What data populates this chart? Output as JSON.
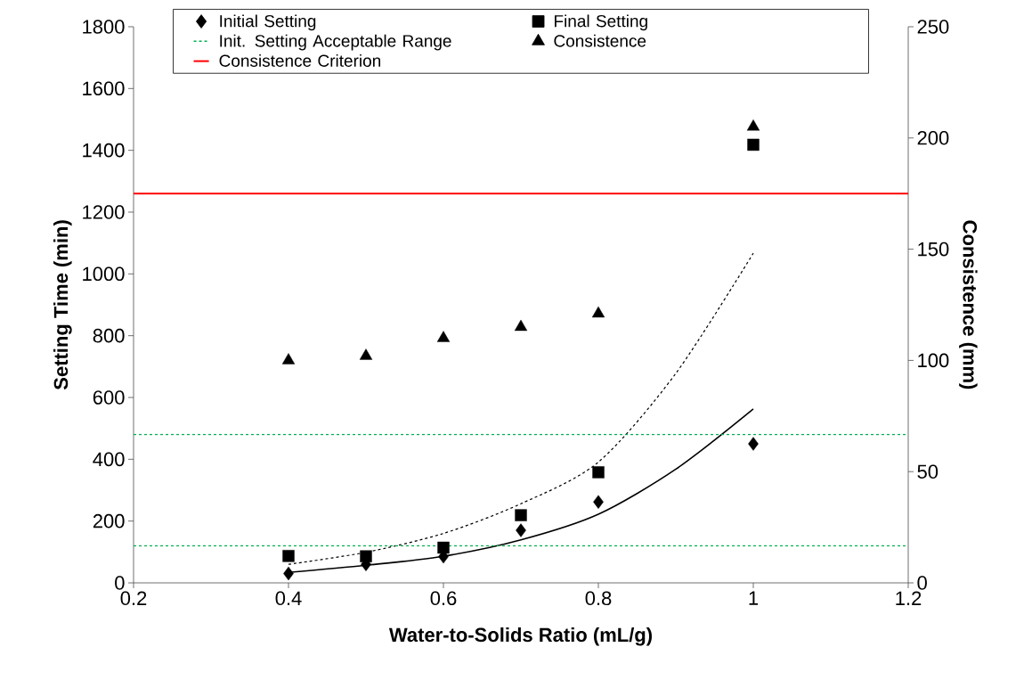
{
  "chart_data": {
    "type": "scatter",
    "xlabel": "Water-to-Solids Ratio (mL/g)",
    "ylabel": "Setting Time (min)",
    "y2label": "Consistence (mm)",
    "xlim": [
      0.2,
      1.2
    ],
    "xticks": [
      0.2,
      0.4,
      0.6,
      0.8,
      1,
      1.2
    ],
    "ylim": [
      0,
      1800
    ],
    "yticks": [
      0,
      200,
      400,
      600,
      800,
      1000,
      1200,
      1400,
      1600,
      1800
    ],
    "y2lim": [
      0,
      250
    ],
    "y2ticks": [
      0,
      50,
      100,
      150,
      200,
      250
    ],
    "x": [
      0.4,
      0.5,
      0.6,
      0.7,
      0.8,
      1.0
    ],
    "legend": "top",
    "series": [
      {
        "name": "Initial Setting",
        "color": "#000000",
        "marker": "diamond",
        "values": [
          30,
          60,
          85,
          170,
          262,
          450
        ]
      },
      {
        "name": "Final Setting",
        "color": "#000000",
        "marker": "square",
        "values": [
          87,
          86,
          114,
          219,
          358,
          1418
        ]
      },
      {
        "name": "Consistence",
        "color": "#000000",
        "marker": "triangle",
        "axis": "y2",
        "values": [
          100,
          102,
          110,
          115,
          121,
          205
        ]
      },
      {
        "type": "line",
        "color": "#000000",
        "line_style": "solid",
        "x": [
          0.4,
          0.5,
          0.6,
          0.7,
          0.8,
          0.9,
          1.0
        ],
        "values": [
          34,
          57,
          86,
          139,
          222,
          368,
          563
        ]
      },
      {
        "type": "line",
        "color": "#000000",
        "line_style": "dashed",
        "x": [
          0.4,
          0.5,
          0.6,
          0.7,
          0.8,
          0.9,
          1.0
        ],
        "values": [
          60,
          99,
          160,
          256,
          391,
          678,
          1067
        ]
      }
    ],
    "ref_lines": [
      {
        "axis": "y",
        "value": 120,
        "label": "Init. Setting Acceptable Range",
        "color": "#00b050",
        "line_style": "dashed"
      },
      {
        "axis": "y",
        "value": 480,
        "color": "#00b050",
        "line_style": "dashed"
      },
      {
        "axis": "y2",
        "value": 175,
        "label": "Consistence Criterion",
        "color": "#ff0000",
        "line_style": "solid"
      }
    ]
  }
}
